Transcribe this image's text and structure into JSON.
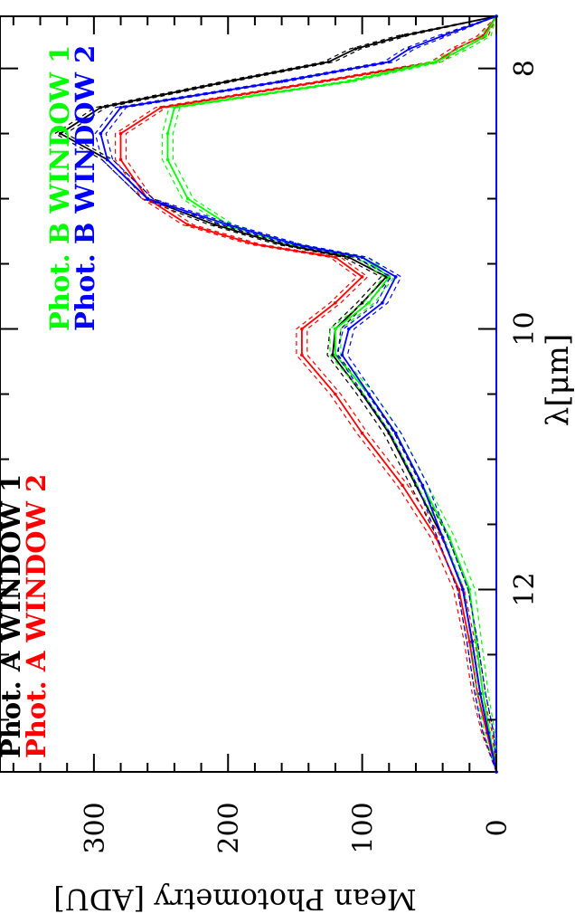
{
  "chart_data": {
    "type": "line",
    "orientation": "rotated-90-clockwise",
    "xlabel": "λ[μm]",
    "ylabel": "Mean Photometry [ADU]",
    "xlim": [
      7.6,
      13.4
    ],
    "ylim": [
      0,
      370
    ],
    "x_ticks_major": [
      8,
      10,
      12
    ],
    "y_ticks_major": [
      0,
      100,
      200,
      300
    ],
    "grid": false,
    "legend_placement": "top",
    "legend": [
      {
        "text": "Phot. A WINDOW 1",
        "color": "#000000"
      },
      {
        "text": "Phot. A WINDOW 2",
        "color": "#ff0000"
      },
      {
        "text": "Phot. B WINDOW 1",
        "color": "#00ff00"
      },
      {
        "text": "Phot. B WINDOW 2",
        "color": "#0000ff"
      }
    ],
    "error_band_width": 4,
    "x": [
      7.6,
      7.75,
      7.85,
      7.95,
      8.1,
      8.3,
      8.5,
      8.7,
      9.0,
      9.2,
      9.35,
      9.45,
      9.6,
      9.8,
      10.0,
      10.2,
      10.5,
      10.8,
      11.2,
      11.6,
      12.0,
      12.4,
      12.8,
      13.1,
      13.4
    ],
    "series": [
      {
        "name": "Phot. A WINDOW 1",
        "color": "#000000",
        "values": [
          0,
          70,
          105,
          125,
          200,
          295,
          325,
          290,
          260,
          210,
          160,
          110,
          82,
          100,
          120,
          122,
          100,
          80,
          60,
          40,
          25,
          18,
          12,
          6,
          0
        ]
      },
      {
        "name": "Phot. A WINDOW 2",
        "color": "#ff0000",
        "values": [
          0,
          10,
          30,
          45,
          130,
          250,
          280,
          280,
          260,
          230,
          180,
          120,
          100,
          120,
          145,
          145,
          120,
          100,
          70,
          45,
          28,
          20,
          14,
          7,
          0
        ]
      },
      {
        "name": "Phot. B WINDOW 1",
        "color": "#00ff00",
        "values": [
          0,
          8,
          25,
          45,
          110,
          240,
          245,
          245,
          230,
          200,
          150,
          100,
          80,
          95,
          120,
          120,
          95,
          75,
          55,
          35,
          20,
          15,
          10,
          5,
          0
        ]
      },
      {
        "name": "Phot. B WINDOW 2",
        "color": "#0000ff",
        "values": [
          0,
          40,
          65,
          80,
          160,
          280,
          295,
          290,
          260,
          200,
          150,
          100,
          75,
          85,
          110,
          115,
          95,
          75,
          55,
          40,
          25,
          18,
          12,
          6,
          0
        ]
      }
    ]
  }
}
